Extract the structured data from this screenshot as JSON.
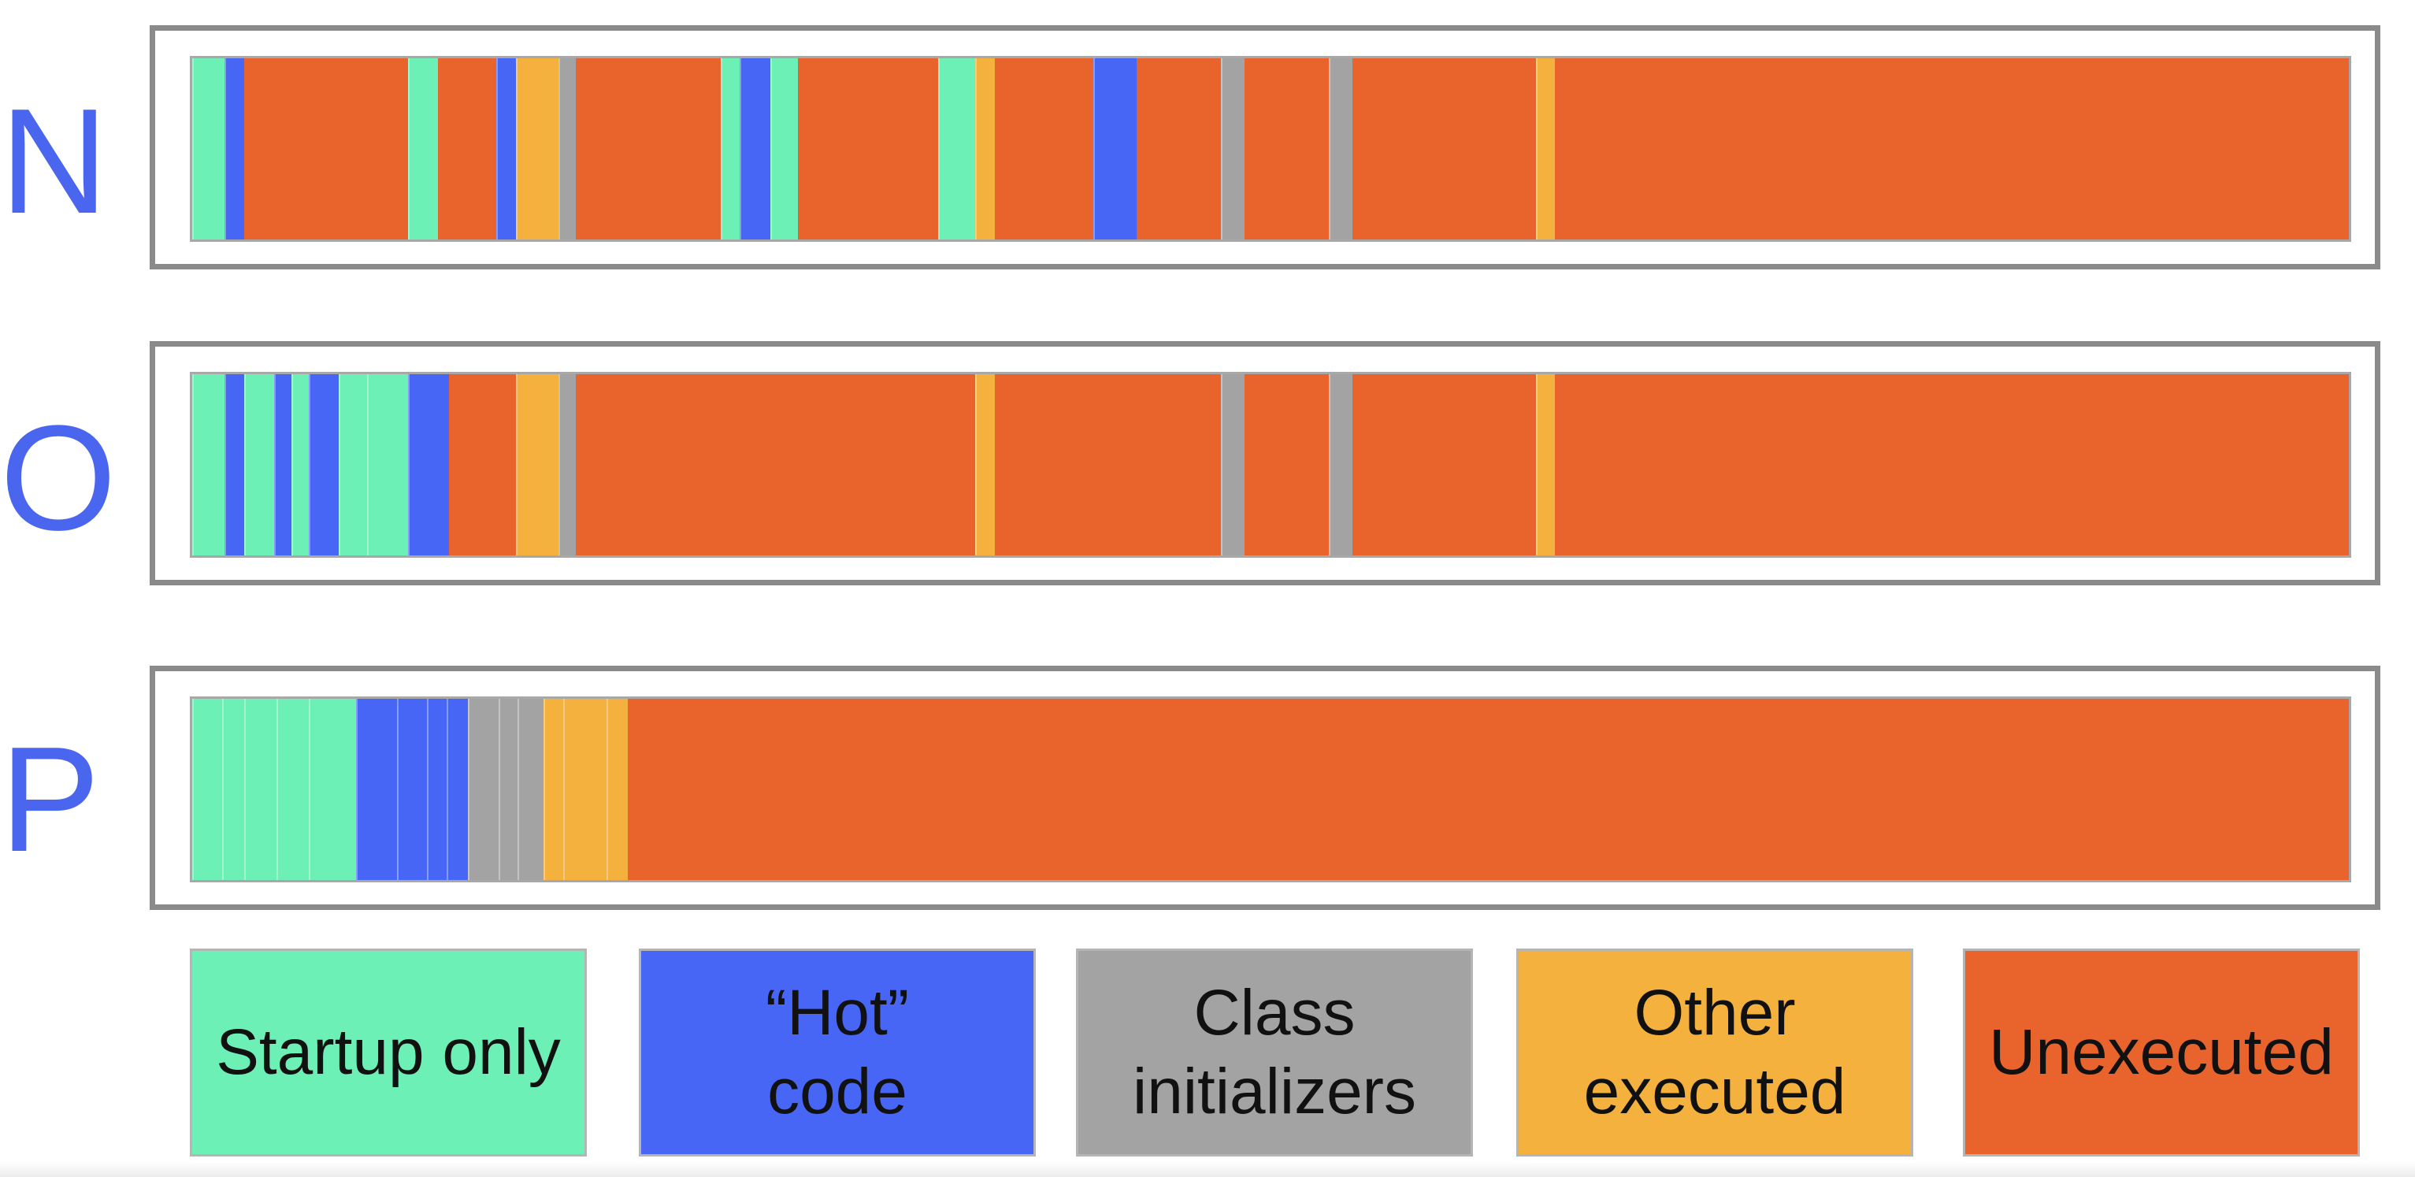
{
  "colors": {
    "startup_only": "#6cf0b6",
    "hot_code": "#4766f5",
    "class_initializers": "#a3a3a3",
    "other_executed": "#f4b13d",
    "unexecuted": "#e9642c"
  },
  "rows": [
    {
      "label": "N",
      "segments": [
        {
          "cat": "startup_only",
          "start": 0.0,
          "end": 0.015
        },
        {
          "cat": "hot_code",
          "start": 0.015,
          "end": 0.024
        },
        {
          "cat": "startup_only",
          "start": 0.1,
          "end": 0.114
        },
        {
          "cat": "hot_code",
          "start": 0.141,
          "end": 0.15
        },
        {
          "cat": "other_executed",
          "start": 0.15,
          "end": 0.17
        },
        {
          "cat": "class_initializers",
          "start": 0.17,
          "end": 0.178
        },
        {
          "cat": "startup_only",
          "start": 0.245,
          "end": 0.254
        },
        {
          "cat": "hot_code",
          "start": 0.254,
          "end": 0.268
        },
        {
          "cat": "startup_only",
          "start": 0.268,
          "end": 0.281
        },
        {
          "cat": "startup_only",
          "start": 0.346,
          "end": 0.363
        },
        {
          "cat": "other_executed",
          "start": 0.363,
          "end": 0.372
        },
        {
          "cat": "hot_code",
          "start": 0.418,
          "end": 0.438
        },
        {
          "cat": "class_initializers",
          "start": 0.477,
          "end": 0.488
        },
        {
          "cat": "class_initializers",
          "start": 0.527,
          "end": 0.538
        },
        {
          "cat": "other_executed",
          "start": 0.623,
          "end": 0.632
        }
      ]
    },
    {
      "label": "O",
      "segments": [
        {
          "cat": "startup_only",
          "start": 0.0,
          "end": 0.015
        },
        {
          "cat": "hot_code",
          "start": 0.015,
          "end": 0.024
        },
        {
          "cat": "startup_only",
          "start": 0.024,
          "end": 0.038
        },
        {
          "cat": "hot_code",
          "start": 0.038,
          "end": 0.046
        },
        {
          "cat": "startup_only",
          "start": 0.046,
          "end": 0.054
        },
        {
          "cat": "hot_code",
          "start": 0.054,
          "end": 0.068
        },
        {
          "cat": "startup_only",
          "start": 0.068,
          "end": 0.081
        },
        {
          "cat": "startup_only",
          "start": 0.081,
          "end": 0.1
        },
        {
          "cat": "hot_code",
          "start": 0.1,
          "end": 0.119
        },
        {
          "cat": "other_executed",
          "start": 0.15,
          "end": 0.17
        },
        {
          "cat": "class_initializers",
          "start": 0.17,
          "end": 0.178
        },
        {
          "cat": "other_executed",
          "start": 0.363,
          "end": 0.372
        },
        {
          "cat": "class_initializers",
          "start": 0.477,
          "end": 0.488
        },
        {
          "cat": "class_initializers",
          "start": 0.527,
          "end": 0.538
        },
        {
          "cat": "other_executed",
          "start": 0.623,
          "end": 0.632
        }
      ]
    },
    {
      "label": "P",
      "segments": [
        {
          "cat": "startup_only",
          "start": 0.0,
          "end": 0.014
        },
        {
          "cat": "startup_only",
          "start": 0.014,
          "end": 0.024
        },
        {
          "cat": "startup_only",
          "start": 0.024,
          "end": 0.039
        },
        {
          "cat": "startup_only",
          "start": 0.039,
          "end": 0.054
        },
        {
          "cat": "startup_only",
          "start": 0.054,
          "end": 0.076
        },
        {
          "cat": "hot_code",
          "start": 0.076,
          "end": 0.095
        },
        {
          "cat": "hot_code",
          "start": 0.095,
          "end": 0.109
        },
        {
          "cat": "hot_code",
          "start": 0.109,
          "end": 0.118
        },
        {
          "cat": "hot_code",
          "start": 0.118,
          "end": 0.128
        },
        {
          "cat": "class_initializers",
          "start": 0.128,
          "end": 0.142
        },
        {
          "cat": "class_initializers",
          "start": 0.142,
          "end": 0.151
        },
        {
          "cat": "class_initializers",
          "start": 0.151,
          "end": 0.163
        },
        {
          "cat": "other_executed",
          "start": 0.163,
          "end": 0.172
        },
        {
          "cat": "other_executed",
          "start": 0.172,
          "end": 0.192
        },
        {
          "cat": "other_executed",
          "start": 0.192,
          "end": 0.202
        }
      ]
    }
  ],
  "legend": [
    {
      "cat": "startup_only",
      "label": "Startup only"
    },
    {
      "cat": "hot_code",
      "label": "“Hot”\ncode"
    },
    {
      "cat": "class_initializers",
      "label": "Class\ninitializers"
    },
    {
      "cat": "other_executed",
      "label": "Other\nexecuted"
    },
    {
      "cat": "unexecuted",
      "label": "Unexecuted"
    }
  ]
}
